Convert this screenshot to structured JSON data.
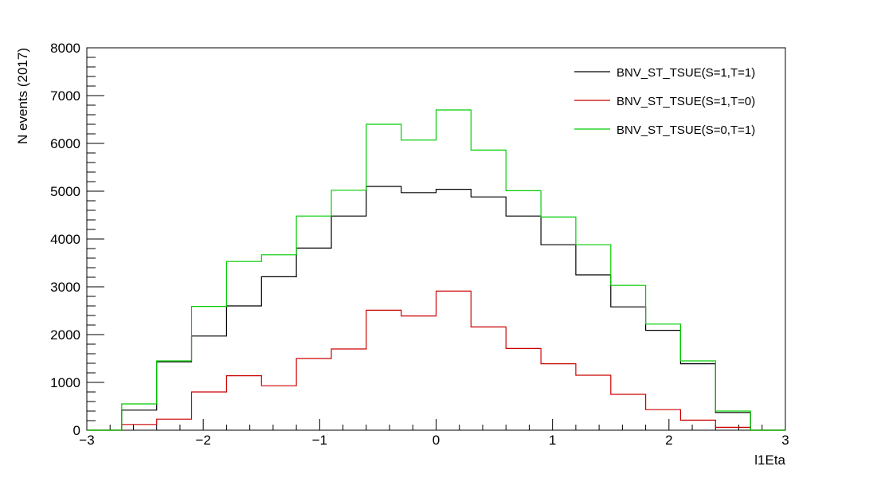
{
  "chart_data": {
    "type": "line",
    "style": "step-histogram",
    "xlabel": "l1Eta",
    "ylabel": "N events (2017)",
    "xlim": [
      -3,
      3
    ],
    "ylim": [
      0,
      8000
    ],
    "xticks": [
      -3,
      -2,
      -1,
      0,
      1,
      2,
      3
    ],
    "xtick_labels": [
      "−3",
      "−2",
      "−1",
      "0",
      "1",
      "2",
      "3"
    ],
    "yticks": [
      0,
      1000,
      2000,
      3000,
      4000,
      5000,
      6000,
      7000,
      8000
    ],
    "ytick_labels": [
      "0",
      "1000",
      "2000",
      "3000",
      "4000",
      "5000",
      "6000",
      "7000",
      "8000"
    ],
    "grid": false,
    "legend_position": "top-right",
    "bin_edges": [
      -3.0,
      -2.7,
      -2.4,
      -2.1,
      -1.8,
      -1.5,
      -1.2,
      -0.9,
      -0.6,
      -0.3,
      0.0,
      0.3,
      0.6,
      0.9,
      1.2,
      1.5,
      1.8,
      2.1,
      2.4,
      2.7,
      3.0
    ],
    "series": [
      {
        "name": "BNV_ST_TSUE(S=1,T=1)",
        "color": "#000000",
        "values": [
          0,
          420,
          1430,
          1970,
          2600,
          3210,
          3810,
          4480,
          5100,
          4970,
          5040,
          4880,
          4480,
          3880,
          3250,
          2580,
          2090,
          1390,
          370,
          0
        ]
      },
      {
        "name": "BNV_ST_TSUE(S=1,T=0)",
        "color": "#cc0000",
        "values": [
          0,
          120,
          230,
          800,
          1140,
          930,
          1500,
          1700,
          2510,
          2390,
          2910,
          2160,
          1710,
          1390,
          1150,
          750,
          430,
          210,
          60,
          0
        ]
      },
      {
        "name": "BNV_ST_TSUE(S=0,T=1)",
        "color": "#00cc00",
        "values": [
          0,
          550,
          1450,
          2590,
          3530,
          3670,
          4480,
          5020,
          6400,
          6070,
          6700,
          5860,
          5010,
          4460,
          3880,
          3030,
          2220,
          1450,
          400,
          0
        ]
      }
    ]
  }
}
